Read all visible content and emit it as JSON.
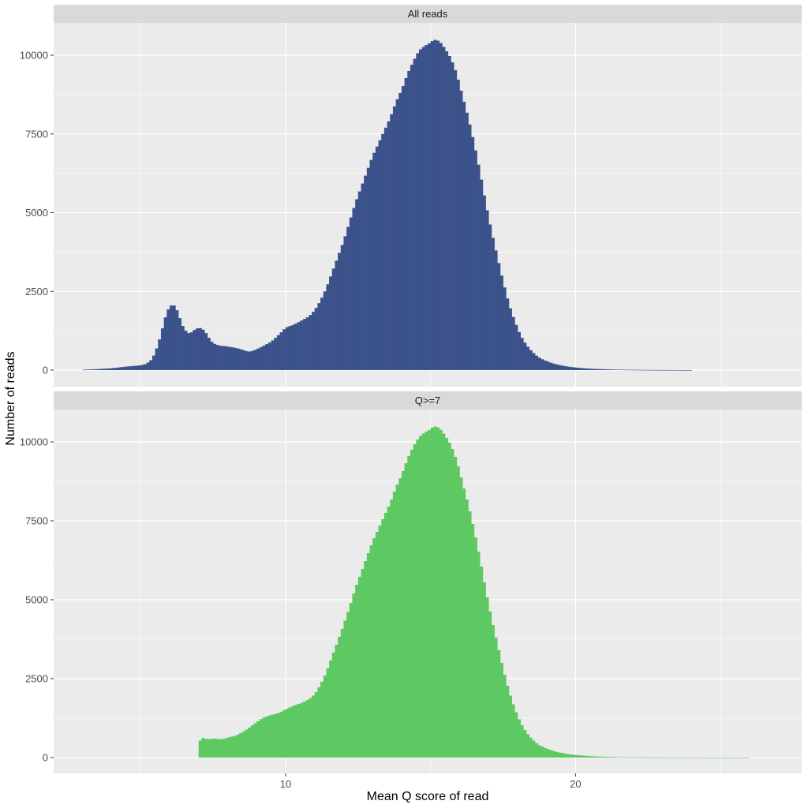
{
  "chart_data": {
    "type": "bar",
    "xlabel": "Mean Q score of read",
    "ylabel": "Number of reads",
    "x_ticks": [
      10,
      20
    ],
    "y_ticks": [
      0,
      2500,
      5000,
      7500,
      10000
    ],
    "xlim": [
      2,
      27.8
    ],
    "ylim": [
      -500,
      11000
    ],
    "grid": true,
    "bin_width": 0.1,
    "panels": [
      {
        "label": "All reads",
        "color": "#3B528B",
        "points": [
          [
            3.0,
            10
          ],
          [
            3.5,
            30
          ],
          [
            4.0,
            60
          ],
          [
            4.5,
            110
          ],
          [
            5.0,
            150
          ],
          [
            5.2,
            200
          ],
          [
            5.4,
            350
          ],
          [
            5.6,
            800
          ],
          [
            5.8,
            1500
          ],
          [
            5.9,
            1850
          ],
          [
            6.0,
            2000
          ],
          [
            6.1,
            2100
          ],
          [
            6.2,
            2000
          ],
          [
            6.3,
            1800
          ],
          [
            6.4,
            1500
          ],
          [
            6.5,
            1300
          ],
          [
            6.6,
            1200
          ],
          [
            6.7,
            1150
          ],
          [
            6.8,
            1250
          ],
          [
            6.9,
            1300
          ],
          [
            7.0,
            1350
          ],
          [
            7.1,
            1320
          ],
          [
            7.2,
            1250
          ],
          [
            7.3,
            1100
          ],
          [
            7.4,
            950
          ],
          [
            7.5,
            850
          ],
          [
            7.7,
            780
          ],
          [
            8.0,
            750
          ],
          [
            8.3,
            700
          ],
          [
            8.5,
            650
          ],
          [
            8.6,
            620
          ],
          [
            8.7,
            580
          ],
          [
            8.9,
            620
          ],
          [
            9.2,
            750
          ],
          [
            9.5,
            900
          ],
          [
            9.8,
            1150
          ],
          [
            10.0,
            1350
          ],
          [
            10.3,
            1450
          ],
          [
            10.6,
            1600
          ],
          [
            10.8,
            1700
          ],
          [
            11.0,
            1900
          ],
          [
            11.2,
            2200
          ],
          [
            11.4,
            2600
          ],
          [
            11.6,
            3100
          ],
          [
            11.8,
            3600
          ],
          [
            12.0,
            4100
          ],
          [
            12.2,
            4700
          ],
          [
            12.4,
            5300
          ],
          [
            12.6,
            5800
          ],
          [
            12.8,
            6300
          ],
          [
            13.0,
            6800
          ],
          [
            13.2,
            7200
          ],
          [
            13.4,
            7600
          ],
          [
            13.6,
            8000
          ],
          [
            13.8,
            8500
          ],
          [
            14.0,
            8900
          ],
          [
            14.2,
            9400
          ],
          [
            14.4,
            9800
          ],
          [
            14.6,
            10150
          ],
          [
            14.8,
            10300
          ],
          [
            15.0,
            10400
          ],
          [
            15.1,
            10500
          ],
          [
            15.3,
            10450
          ],
          [
            15.5,
            10200
          ],
          [
            15.7,
            9900
          ],
          [
            15.9,
            9400
          ],
          [
            16.1,
            8700
          ],
          [
            16.3,
            8000
          ],
          [
            16.5,
            7200
          ],
          [
            16.7,
            6300
          ],
          [
            16.9,
            5300
          ],
          [
            17.1,
            4400
          ],
          [
            17.3,
            3600
          ],
          [
            17.5,
            2800
          ],
          [
            17.7,
            2100
          ],
          [
            17.9,
            1550
          ],
          [
            18.1,
            1100
          ],
          [
            18.3,
            800
          ],
          [
            18.5,
            580
          ],
          [
            18.7,
            420
          ],
          [
            18.9,
            320
          ],
          [
            19.1,
            250
          ],
          [
            19.3,
            190
          ],
          [
            19.5,
            150
          ],
          [
            19.7,
            115
          ],
          [
            19.9,
            90
          ],
          [
            20.2,
            65
          ],
          [
            20.5,
            45
          ],
          [
            21.0,
            25
          ],
          [
            21.5,
            15
          ],
          [
            22.0,
            10
          ],
          [
            22.5,
            5
          ],
          [
            23.0,
            3
          ],
          [
            23.5,
            2
          ],
          [
            24.0,
            1
          ]
        ]
      },
      {
        "label": "Q>=7",
        "color": "#5EC962",
        "points": [
          [
            7.0,
            0
          ],
          [
            7.01,
            450
          ],
          [
            7.1,
            650
          ],
          [
            7.2,
            600
          ],
          [
            7.3,
            580
          ],
          [
            7.5,
            600
          ],
          [
            7.8,
            580
          ],
          [
            8.0,
            630
          ],
          [
            8.3,
            700
          ],
          [
            8.6,
            850
          ],
          [
            8.9,
            1050
          ],
          [
            9.2,
            1250
          ],
          [
            9.5,
            1350
          ],
          [
            9.8,
            1420
          ],
          [
            10.0,
            1530
          ],
          [
            10.3,
            1650
          ],
          [
            10.6,
            1750
          ],
          [
            10.8,
            1850
          ],
          [
            11.0,
            2000
          ],
          [
            11.2,
            2300
          ],
          [
            11.4,
            2700
          ],
          [
            11.6,
            3200
          ],
          [
            11.8,
            3700
          ],
          [
            12.0,
            4200
          ],
          [
            12.2,
            4750
          ],
          [
            12.4,
            5350
          ],
          [
            12.6,
            5850
          ],
          [
            12.8,
            6350
          ],
          [
            13.0,
            6850
          ],
          [
            13.2,
            7250
          ],
          [
            13.4,
            7650
          ],
          [
            13.6,
            8050
          ],
          [
            13.8,
            8550
          ],
          [
            14.0,
            8950
          ],
          [
            14.2,
            9450
          ],
          [
            14.4,
            9850
          ],
          [
            14.6,
            10150
          ],
          [
            14.8,
            10300
          ],
          [
            15.0,
            10400
          ],
          [
            15.1,
            10500
          ],
          [
            15.3,
            10450
          ],
          [
            15.5,
            10200
          ],
          [
            15.7,
            9900
          ],
          [
            15.9,
            9400
          ],
          [
            16.1,
            8700
          ],
          [
            16.3,
            8000
          ],
          [
            16.5,
            7200
          ],
          [
            16.7,
            6300
          ],
          [
            16.9,
            5300
          ],
          [
            17.1,
            4400
          ],
          [
            17.3,
            3600
          ],
          [
            17.5,
            2800
          ],
          [
            17.7,
            2100
          ],
          [
            17.9,
            1550
          ],
          [
            18.1,
            1100
          ],
          [
            18.3,
            800
          ],
          [
            18.5,
            580
          ],
          [
            18.7,
            420
          ],
          [
            18.9,
            320
          ],
          [
            19.1,
            250
          ],
          [
            19.3,
            190
          ],
          [
            19.5,
            150
          ],
          [
            19.7,
            115
          ],
          [
            19.9,
            90
          ],
          [
            20.2,
            65
          ],
          [
            20.5,
            45
          ],
          [
            21.0,
            25
          ],
          [
            21.5,
            15
          ],
          [
            22.0,
            10
          ],
          [
            22.5,
            6
          ],
          [
            23.0,
            4
          ],
          [
            24.0,
            2
          ],
          [
            25.0,
            1
          ],
          [
            26.0,
            1
          ]
        ]
      }
    ]
  }
}
